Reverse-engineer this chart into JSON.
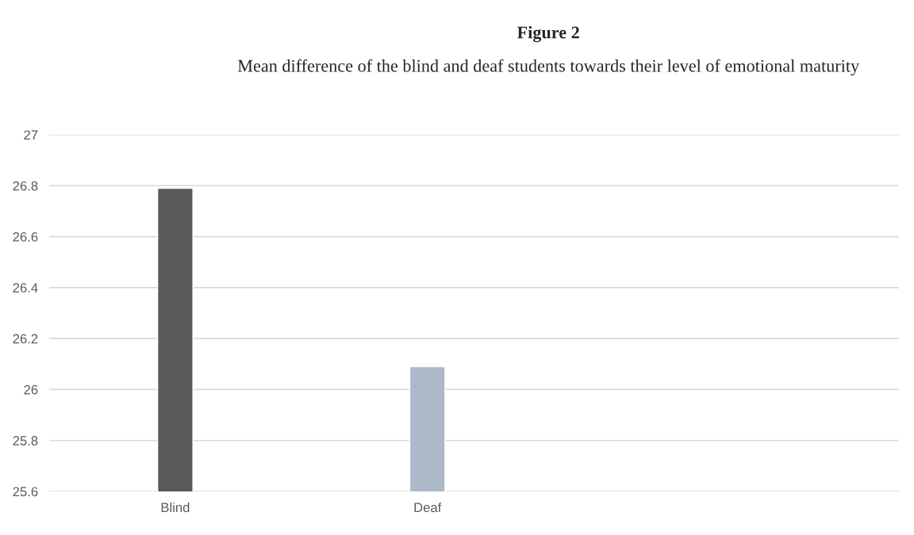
{
  "chart_data": {
    "type": "bar",
    "title": "Figure 2",
    "subtitle": "Mean difference of the blind and deaf students towards their level of emotional maturity",
    "categories": [
      "Blind",
      "Deaf"
    ],
    "values": [
      26.79,
      26.09
    ],
    "colors": [
      "#595959",
      "#adb9ca"
    ],
    "ylim": [
      25.6,
      27
    ],
    "yticks": [
      25.6,
      25.8,
      26,
      26.2,
      26.4,
      26.6,
      26.8,
      27
    ],
    "grid": "y",
    "legend": false
  }
}
